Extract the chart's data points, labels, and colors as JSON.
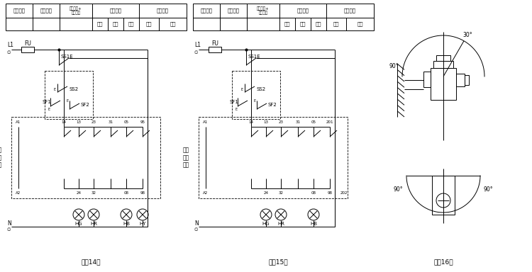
{
  "bg_color": "#ffffff",
  "line_color": "#000000",
  "title14": "（图14）",
  "title15": "（图15）",
  "title16": "（图16）",
  "fig_width": 7.5,
  "fig_height": 3.84
}
